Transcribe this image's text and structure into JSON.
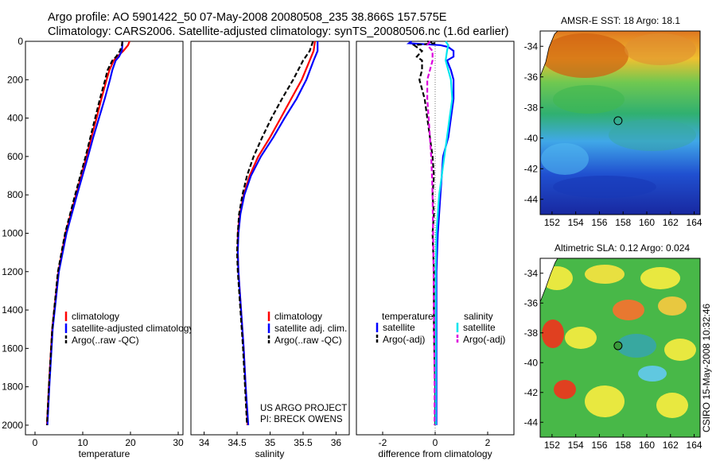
{
  "header": {
    "line1": "Argo profile: AO 5901422_50 07-May-2008 20080508_235 38.866S 157.575E",
    "line2": "Climatology: CARS2006. Satellite-adjusted climatology: synTS_20080506.nc (1.6d earlier)"
  },
  "side_label": "CSIRO 15-May-2008 10:32:46",
  "credit": {
    "line1": "US ARGO PROJECT",
    "line2": "PI: BRECK OWENS"
  },
  "colors": {
    "clim": "#ff0000",
    "sat": "#0000ff",
    "argo": "#000000",
    "sat_salt": "#00e5ee",
    "argo_salt": "#dd00dd"
  },
  "chart_data": [
    {
      "type": "line",
      "xlabel": "temperature",
      "xlim": [
        -2,
        31
      ],
      "ylim": [
        0,
        2050
      ],
      "xticks": [
        "0",
        "10",
        "20",
        "30"
      ],
      "yticks": [
        "0",
        "200",
        "400",
        "600",
        "800",
        "1000",
        "1200",
        "1400",
        "1600",
        "1800",
        "2000"
      ],
      "legend": [
        "climatology",
        "satellite-adjusted climatology",
        "Argo(..raw -QC)"
      ],
      "series": [
        {
          "name": "climatology",
          "color": "#ff0000",
          "style": "solid",
          "depth": [
            0,
            20,
            50,
            80,
            100,
            150,
            200,
            300,
            400,
            500,
            600,
            800,
            1000,
            1200,
            1500,
            1800,
            2000
          ],
          "values": [
            19.8,
            19.5,
            18.5,
            17.2,
            16.5,
            15.6,
            15.0,
            13.9,
            12.9,
            11.8,
            10.8,
            8.6,
            6.4,
            4.9,
            3.6,
            2.9,
            2.5
          ]
        },
        {
          "name": "satellite-adjusted climatology",
          "color": "#0000ff",
          "style": "solid",
          "depth": [
            0,
            20,
            50,
            80,
            100,
            150,
            200,
            300,
            400,
            500,
            600,
            800,
            1000,
            1200,
            1500,
            1800,
            2000
          ],
          "values": [
            18.3,
            18.3,
            18.2,
            17.6,
            16.9,
            16.2,
            15.7,
            14.6,
            13.4,
            12.2,
            11.1,
            8.8,
            6.6,
            5.0,
            3.7,
            3.0,
            2.6
          ]
        },
        {
          "name": "Argo(..raw -QC)",
          "color": "#000000",
          "style": "dash",
          "depth": [
            0,
            20,
            50,
            80,
            100,
            150,
            200,
            300,
            400,
            500,
            600,
            800,
            1000,
            1200,
            1500,
            1800,
            2000
          ],
          "values": [
            18.3,
            18.2,
            17.8,
            17.0,
            16.2,
            15.2,
            14.7,
            13.6,
            12.6,
            11.6,
            10.6,
            8.4,
            6.3,
            4.8,
            3.6,
            2.9,
            2.5
          ]
        }
      ]
    },
    {
      "type": "line",
      "xlabel": "salinity",
      "xlim": [
        33.8,
        36.2
      ],
      "ylim": [
        0,
        2050
      ],
      "xticks": [
        "34",
        "34.5",
        "35",
        "35.5",
        "36"
      ],
      "yticks": [],
      "legend": [
        "climatology",
        "satellite adj. clim.",
        "Argo(..raw -QC)"
      ],
      "series": [
        {
          "name": "climatology",
          "color": "#ff0000",
          "style": "solid",
          "depth": [
            0,
            50,
            100,
            200,
            300,
            400,
            500,
            600,
            700,
            800,
            900,
            1000,
            1100,
            1200,
            1400,
            1600,
            1800,
            2000
          ],
          "values": [
            35.68,
            35.66,
            35.6,
            35.48,
            35.32,
            35.16,
            35.0,
            34.82,
            34.69,
            34.6,
            34.54,
            34.51,
            34.51,
            34.52,
            34.56,
            34.6,
            34.63,
            34.66
          ]
        },
        {
          "name": "satellite adj. clim.",
          "color": "#0000ff",
          "style": "solid",
          "depth": [
            0,
            50,
            100,
            200,
            300,
            400,
            500,
            600,
            700,
            800,
            900,
            1000,
            1100,
            1200,
            1400,
            1600,
            1800,
            2000
          ],
          "values": [
            35.72,
            35.72,
            35.66,
            35.55,
            35.4,
            35.22,
            35.05,
            34.86,
            34.71,
            34.61,
            34.55,
            34.52,
            34.51,
            34.52,
            34.56,
            34.6,
            34.63,
            34.67
          ]
        },
        {
          "name": "Argo(..raw -QC)",
          "color": "#000000",
          "style": "dash",
          "depth": [
            0,
            50,
            100,
            200,
            300,
            400,
            500,
            600,
            700,
            800,
            900,
            1000,
            1100,
            1200,
            1400,
            1600,
            1800,
            2000
          ],
          "values": [
            35.65,
            35.6,
            35.5,
            35.35,
            35.18,
            35.02,
            34.88,
            34.75,
            34.65,
            34.58,
            34.53,
            34.51,
            34.5,
            34.51,
            34.55,
            34.59,
            34.62,
            34.65
          ]
        }
      ]
    },
    {
      "type": "line",
      "xlabel": "difference from climatology",
      "xlim": [
        -3,
        3
      ],
      "ylim": [
        0,
        2050
      ],
      "xticks": [
        "-2",
        "0",
        "2"
      ],
      "yticks": [],
      "legend_titles": [
        "temperature",
        "salinity"
      ],
      "legend_left": [
        "satellite",
        "Argo(-adj)"
      ],
      "legend_right": [
        "satellite",
        "Argo(-adj)"
      ],
      "series": [
        {
          "name": "temperature satellite",
          "color": "#0000ff",
          "style": "solid",
          "depth": [
            0,
            10,
            20,
            30,
            50,
            80,
            100,
            150,
            200,
            300,
            400,
            500,
            600,
            700,
            800,
            900,
            1000,
            1200,
            1500,
            1800,
            2000
          ],
          "values": [
            -0.9,
            -1.0,
            0.2,
            0.5,
            0.7,
            0.7,
            0.45,
            0.6,
            0.7,
            0.7,
            0.6,
            0.5,
            0.3,
            0.25,
            0.2,
            0.15,
            0.1,
            0.05,
            0.05,
            0.05,
            0.05
          ]
        },
        {
          "name": "temperature Argo(-adj)",
          "color": "#000000",
          "style": "dash",
          "depth": [
            0,
            10,
            20,
            50,
            80,
            100,
            150,
            200,
            300,
            400,
            500,
            600,
            700,
            800,
            900,
            1000,
            1200,
            1500,
            1800,
            2000
          ],
          "values": [
            -0.3,
            0.0,
            -0.8,
            -0.5,
            -0.7,
            -0.5,
            -0.5,
            -0.6,
            -0.4,
            -0.3,
            -0.2,
            -0.1,
            -0.05,
            -0.1,
            -0.05,
            -0.1,
            -0.05,
            -0.05,
            0.0,
            0.0
          ]
        },
        {
          "name": "salinity satellite",
          "color": "#00e5ee",
          "style": "solid",
          "depth": [
            0,
            20,
            50,
            100,
            200,
            300,
            400,
            500,
            600,
            700,
            800,
            1000,
            1200,
            1500,
            1800,
            2000
          ],
          "values": [
            0.4,
            0.5,
            0.45,
            0.4,
            0.6,
            0.65,
            0.55,
            0.45,
            0.35,
            0.25,
            0.15,
            0.05,
            0.02,
            0.02,
            0.02,
            0.02
          ]
        },
        {
          "name": "salinity Argo(-adj)",
          "color": "#dd00dd",
          "style": "dash",
          "depth": [
            0,
            20,
            50,
            100,
            150,
            200,
            300,
            400,
            500,
            600,
            700,
            800,
            1000,
            1200,
            1500,
            1800,
            2000
          ],
          "values": [
            -0.2,
            -0.3,
            -0.1,
            -0.1,
            -0.2,
            -0.3,
            -0.3,
            -0.25,
            -0.2,
            -0.15,
            -0.12,
            -0.1,
            -0.08,
            -0.06,
            -0.04,
            -0.02,
            -0.02
          ]
        }
      ]
    },
    {
      "type": "heatmap",
      "title": "AMSR-E SST: 18 Argo: 18.1",
      "xlim": [
        151,
        164.5
      ],
      "ylim": [
        -45,
        -33
      ],
      "xticks": [
        "152",
        "154",
        "156",
        "158",
        "160",
        "162",
        "164"
      ],
      "yticks": [
        "-34",
        "-36",
        "-38",
        "-40",
        "-42",
        "-44"
      ],
      "marker": {
        "lon": 157.575,
        "lat": -38.866
      }
    },
    {
      "type": "heatmap",
      "title": "Altimetric SLA: 0.12 Argo: 0.024",
      "xlim": [
        151,
        164.5
      ],
      "ylim": [
        -45,
        -33
      ],
      "xticks": [
        "152",
        "154",
        "156",
        "158",
        "160",
        "162",
        "164"
      ],
      "yticks": [
        "-34",
        "-36",
        "-38",
        "-40",
        "-42",
        "-44"
      ],
      "marker": {
        "lon": 157.575,
        "lat": -38.866
      }
    }
  ]
}
